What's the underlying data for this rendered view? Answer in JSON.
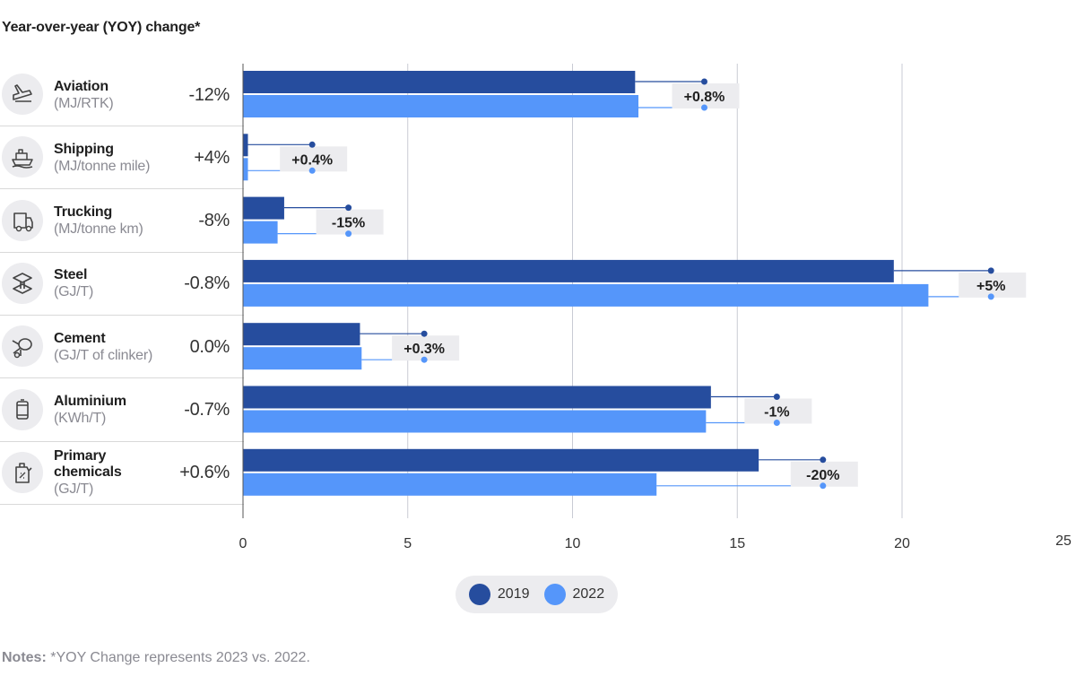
{
  "title": "Year-over-year (YOY) change*",
  "colors": {
    "s2019": "#264d9e",
    "s2022": "#5596fa",
    "grid": "#c9cbd4",
    "badge": "#ececef"
  },
  "legend": [
    {
      "label": "2019",
      "color": "#264d9e"
    },
    {
      "label": "2022",
      "color": "#5596fa"
    }
  ],
  "notes": {
    "prefix": "Notes:",
    "text": " *YOY Change represents 2023 vs. 2022."
  },
  "sectors": [
    {
      "label": "Aviation",
      "unit": "(MJ/RTK)",
      "yoy": "-12%",
      "icon": "airplane-icon"
    },
    {
      "label": "Shipping",
      "unit": "(MJ/tonne mile)",
      "yoy": "+4%",
      "icon": "ship-icon"
    },
    {
      "label": "Trucking",
      "unit": "(MJ/tonne km)",
      "yoy": "-8%",
      "icon": "truck-icon"
    },
    {
      "label": "Steel",
      "unit": "(GJ/T)",
      "yoy": "-0.8%",
      "icon": "steel-beam-icon"
    },
    {
      "label": "Cement",
      "unit": "(GJ/T of clinker)",
      "yoy": "0.0%",
      "icon": "cement-mixer-icon"
    },
    {
      "label": "Aluminium",
      "unit": "(KWh/T)",
      "yoy": "-0.7%",
      "icon": "aluminium-can-icon"
    },
    {
      "label": "Primary\nchemicals",
      "unit": "(GJ/T)",
      "yoy": "+0.6%",
      "icon": "chemical-canister-icon"
    }
  ],
  "chart_data": {
    "type": "bar",
    "orientation": "horizontal",
    "categories": [
      "Aviation",
      "Shipping",
      "Trucking",
      "Steel",
      "Cement",
      "Aluminium",
      "Primary chemicals"
    ],
    "series": [
      {
        "name": "2019",
        "values": [
          11.9,
          0.15,
          1.25,
          19.75,
          3.55,
          14.2,
          15.65
        ]
      },
      {
        "name": "2022",
        "values": [
          12.0,
          0.15,
          1.05,
          20.8,
          3.6,
          14.05,
          12.55
        ]
      }
    ],
    "markers_2019": [
      14.0,
      2.1,
      3.2,
      22.7,
      5.5,
      16.2,
      17.6
    ],
    "markers_2022": [
      14.0,
      2.1,
      3.2,
      22.7,
      5.5,
      16.2,
      17.6
    ],
    "change_labels": [
      "+0.8%",
      "+0.4%",
      "-15%",
      "+5%",
      "+0.3%",
      "-1%",
      "-20%"
    ],
    "xlim": [
      0,
      25
    ],
    "xticks": [
      0,
      5,
      10,
      15,
      20,
      25
    ],
    "grid": true,
    "legend_position": "bottom-center"
  }
}
